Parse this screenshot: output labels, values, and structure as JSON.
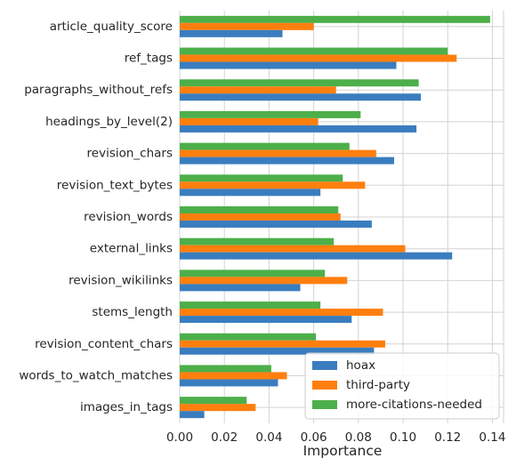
{
  "chart_data": {
    "type": "bar",
    "orientation": "horizontal",
    "title": "",
    "xlabel": "Importance",
    "ylabel": "",
    "xlim": [
      0,
      0.145
    ],
    "xticks": [
      0.0,
      0.02,
      0.04,
      0.06,
      0.08,
      0.1,
      0.12,
      0.14
    ],
    "xtick_labels": [
      "0.00",
      "0.02",
      "0.04",
      "0.06",
      "0.08",
      "0.10",
      "0.12",
      "0.14"
    ],
    "grid": true,
    "legend_position": "lower-right",
    "categories": [
      "article_quality_score",
      "ref_tags",
      "paragraphs_without_refs",
      "headings_by_level(2)",
      "revision_chars",
      "revision_text_bytes",
      "revision_words",
      "external_links",
      "revision_wikilinks",
      "stems_length",
      "revision_content_chars",
      "words_to_watch_matches",
      "images_in_tags"
    ],
    "series": [
      {
        "name": "hoax",
        "color": "#3a7dbf",
        "values": [
          0.046,
          0.097,
          0.108,
          0.106,
          0.096,
          0.063,
          0.086,
          0.122,
          0.054,
          0.077,
          0.087,
          0.044,
          0.011
        ]
      },
      {
        "name": "third-party",
        "color": "#ff7f0e",
        "values": [
          0.06,
          0.124,
          0.07,
          0.062,
          0.088,
          0.083,
          0.072,
          0.101,
          0.075,
          0.091,
          0.092,
          0.048,
          0.034
        ]
      },
      {
        "name": "more-citations-needed",
        "color": "#4daf4a",
        "values": [
          0.139,
          0.12,
          0.107,
          0.081,
          0.076,
          0.073,
          0.071,
          0.069,
          0.065,
          0.063,
          0.061,
          0.041,
          0.03
        ]
      }
    ]
  }
}
